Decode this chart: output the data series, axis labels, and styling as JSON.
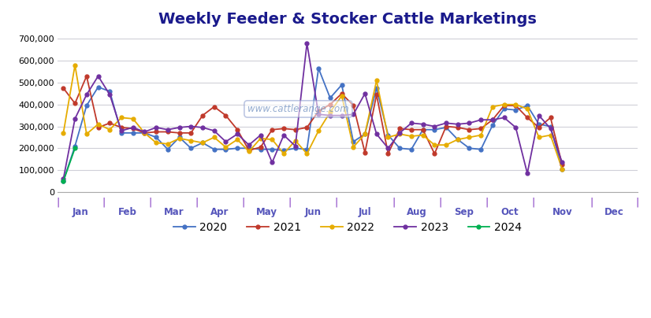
{
  "title": "Weekly Feeder & Stocker Cattle Marketings",
  "title_color": "#1a1a8c",
  "title_fontsize": 14,
  "background_color": "#ffffff",
  "watermark": "www.cattlerange.com",
  "ylim": [
    0,
    730000
  ],
  "yticks": [
    0,
    100000,
    200000,
    300000,
    400000,
    500000,
    600000,
    700000
  ],
  "months": [
    "Jan",
    "Feb",
    "Mar",
    "Apr",
    "May",
    "Jun",
    "Jul",
    "Aug",
    "Sep",
    "Oct",
    "Nov",
    "Dec"
  ],
  "series": {
    "2020": {
      "color": "#4472c4",
      "marker": "o",
      "values": [
        50000,
        210000,
        395000,
        480000,
        460000,
        270000,
        270000,
        270000,
        250000,
        195000,
        250000,
        200000,
        225000,
        195000,
        195000,
        200000,
        200000,
        195000,
        195000,
        190000,
        200000,
        195000,
        565000,
        430000,
        490000,
        230000,
        265000,
        475000,
        260000,
        200000,
        195000,
        285000,
        285000,
        295000,
        240000,
        200000,
        195000,
        305000,
        380000,
        375000,
        395000,
        310000,
        300000,
        105000
      ]
    },
    "2021": {
      "color": "#c0392b",
      "marker": "o",
      "values": [
        475000,
        405000,
        530000,
        295000,
        315000,
        295000,
        290000,
        270000,
        275000,
        275000,
        270000,
        270000,
        350000,
        390000,
        350000,
        285000,
        190000,
        205000,
        285000,
        290000,
        285000,
        295000,
        370000,
        400000,
        450000,
        395000,
        180000,
        445000,
        175000,
        290000,
        285000,
        285000,
        175000,
        300000,
        295000,
        285000,
        290000,
        330000,
        395000,
        395000,
        340000,
        295000,
        340000,
        125000
      ]
    },
    "2022": {
      "color": "#e6ac00",
      "marker": "o",
      "values": [
        270000,
        580000,
        265000,
        310000,
        285000,
        340000,
        335000,
        270000,
        225000,
        220000,
        245000,
        235000,
        225000,
        250000,
        205000,
        240000,
        185000,
        245000,
        240000,
        175000,
        235000,
        175000,
        280000,
        365000,
        440000,
        205000,
        265000,
        510000,
        250000,
        265000,
        255000,
        260000,
        215000,
        215000,
        240000,
        250000,
        260000,
        390000,
        400000,
        400000,
        380000,
        250000,
        260000,
        105000
      ]
    },
    "2023": {
      "color": "#7030a0",
      "marker": "o",
      "values": [
        60000,
        335000,
        445000,
        530000,
        445000,
        280000,
        295000,
        275000,
        295000,
        285000,
        295000,
        300000,
        295000,
        280000,
        230000,
        265000,
        215000,
        260000,
        135000,
        260000,
        210000,
        680000,
        355000,
        350000,
        350000,
        355000,
        450000,
        265000,
        200000,
        270000,
        315000,
        310000,
        300000,
        315000,
        310000,
        315000,
        330000,
        330000,
        340000,
        295000,
        85000,
        350000,
        290000,
        135000
      ]
    },
    "2024": {
      "color": "#00b050",
      "marker": "o",
      "values": [
        50000,
        200000,
        null,
        null,
        null,
        null,
        null,
        null,
        null,
        null,
        null,
        null,
        null,
        null,
        null,
        null,
        null,
        null,
        null,
        null,
        null,
        null,
        null,
        null,
        null,
        null,
        null,
        null,
        null,
        null,
        null,
        null,
        null,
        null,
        null,
        null,
        null,
        null,
        null,
        null,
        null,
        null,
        null,
        null
      ]
    }
  },
  "legend_labels": [
    "2020",
    "2021",
    "2022",
    "2023",
    "2024"
  ],
  "tick_color": "#7b2fbe",
  "grid_color": "#d0d0d8",
  "axis_label_color": "#5555bb",
  "weeks_per_month": [
    4,
    4,
    4,
    4,
    4,
    4,
    5,
    4,
    4,
    4,
    5,
    4
  ]
}
